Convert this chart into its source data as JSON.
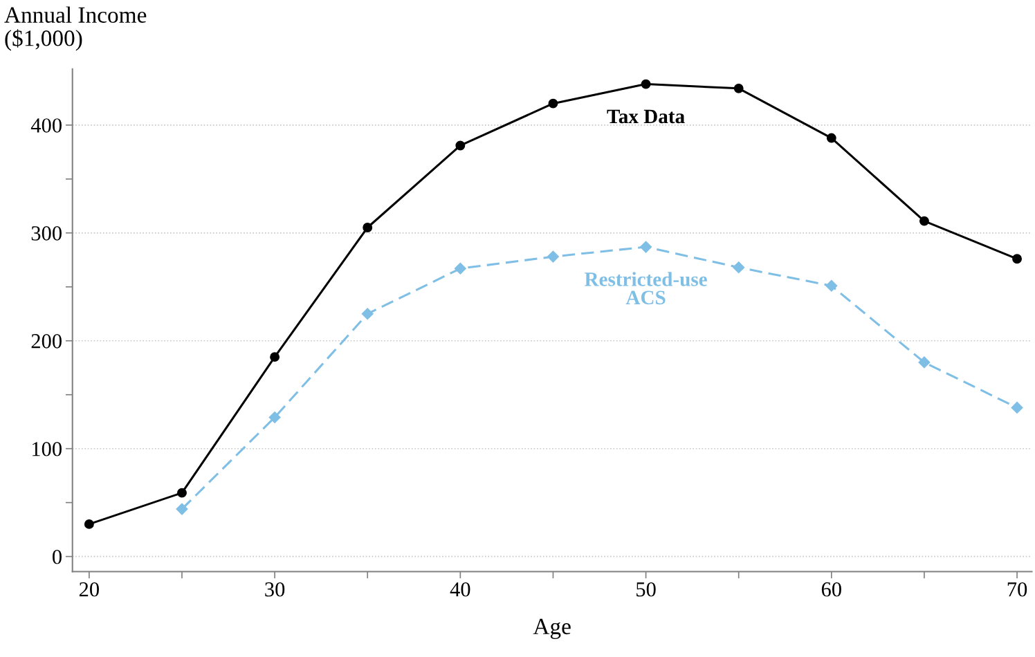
{
  "chart_data": {
    "type": "line",
    "xlabel": "Age",
    "ylabel": "Annual Income\n($1,000)",
    "xlim": [
      19.1,
      70.8
    ],
    "ylim": [
      -14,
      452
    ],
    "xticks": [
      20,
      {
        "value": 25,
        "label": null
      },
      30,
      {
        "value": 35,
        "label": null
      },
      40,
      {
        "value": 45,
        "label": null
      },
      50,
      {
        "value": 55,
        "label": null
      },
      60,
      {
        "value": 65,
        "label": null
      },
      70
    ],
    "yticks": [
      0,
      {
        "value": 50,
        "label": null
      },
      100,
      {
        "value": 150,
        "label": null
      },
      200,
      {
        "value": 250,
        "label": null
      },
      300,
      {
        "value": 350,
        "label": null
      },
      400
    ],
    "grid": "y",
    "legend": false,
    "series": [
      {
        "name": "Tax Data",
        "color": "#000000",
        "marker": "circle",
        "line_style": "solid",
        "x": [
          20,
          25,
          30,
          35,
          40,
          45,
          50,
          55,
          60,
          65,
          70
        ],
        "values": [
          30,
          59,
          185,
          305,
          381,
          420,
          438,
          434,
          388,
          311,
          276
        ]
      },
      {
        "name": "Restricted-use\nACS",
        "color": "#7fbfe6",
        "marker": "diamond",
        "line_style": "dashed",
        "x": [
          25,
          30,
          35,
          40,
          45,
          50,
          55,
          60,
          65,
          70
        ],
        "values": [
          44,
          129,
          225,
          267,
          278,
          287,
          268,
          251,
          180,
          138
        ]
      }
    ]
  }
}
